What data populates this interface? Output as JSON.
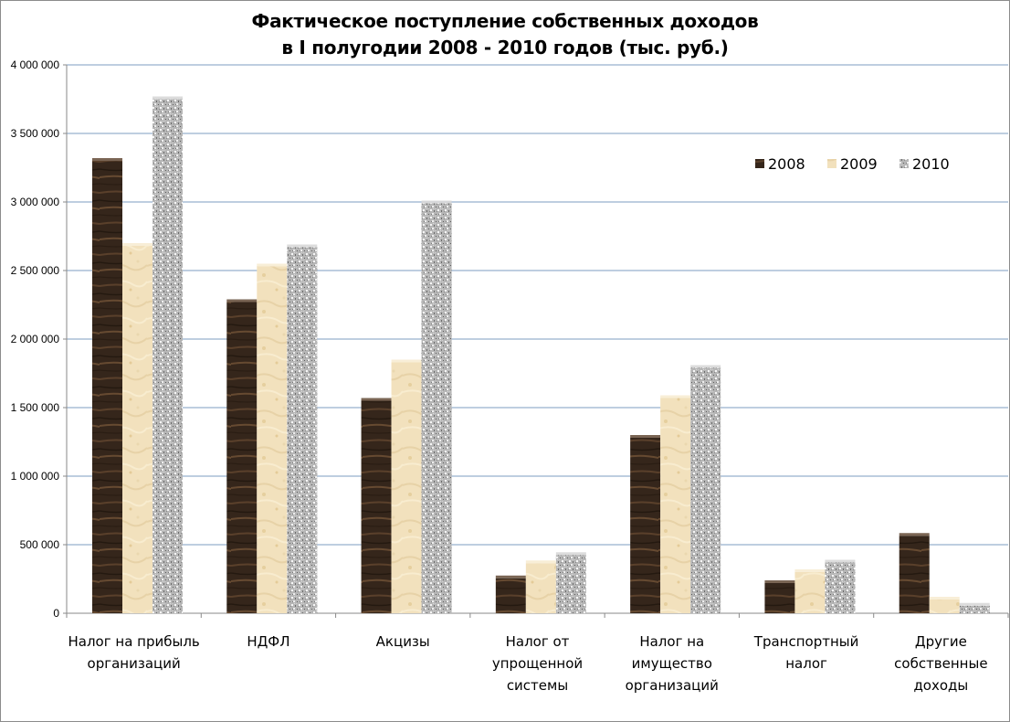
{
  "chart_data": {
    "type": "bar",
    "title_lines": [
      "Фактическое поступление собственных доходов",
      "в I полугодии 2008 - 2010 годов (тыс. руб.)"
    ],
    "categories": [
      [
        "Налог на прибыль",
        "организаций"
      ],
      [
        "НДФЛ"
      ],
      [
        "Акцизы"
      ],
      [
        "Налог от",
        "упрощенной",
        "системы"
      ],
      [
        "Налог на",
        "имущество",
        "организаций"
      ],
      [
        "Транспортный",
        "налог"
      ],
      [
        "Другие",
        "собственные",
        "доходы"
      ]
    ],
    "series": [
      {
        "name": "2008",
        "color": "#3b2a1e",
        "values": [
          3300000,
          2270000,
          1550000,
          255000,
          1280000,
          220000,
          565000
        ]
      },
      {
        "name": "2009",
        "color": "#f1dfb8",
        "values": [
          2680000,
          2530000,
          1830000,
          365000,
          1570000,
          300000,
          100000
        ]
      },
      {
        "name": "2010",
        "color": "#b4b4b4",
        "values": [
          3750000,
          2670000,
          2990000,
          425000,
          1790000,
          370000,
          55000
        ]
      }
    ],
    "ylim": [
      0,
      4000000
    ],
    "y_ticks": [
      {
        "value": 0,
        "label": "0"
      },
      {
        "value": 500000,
        "label": "500 000"
      },
      {
        "value": 1000000,
        "label": "1 000 000"
      },
      {
        "value": 1500000,
        "label": "1 500 000"
      },
      {
        "value": 2000000,
        "label": "2 000 000"
      },
      {
        "value": 2500000,
        "label": "2 500 000"
      },
      {
        "value": 3000000,
        "label": "3 000 000"
      },
      {
        "value": 3500000,
        "label": "3 500 000"
      },
      {
        "value": 4000000,
        "label": "4 000 000"
      }
    ],
    "grid": true,
    "legend_position": "top-right"
  }
}
